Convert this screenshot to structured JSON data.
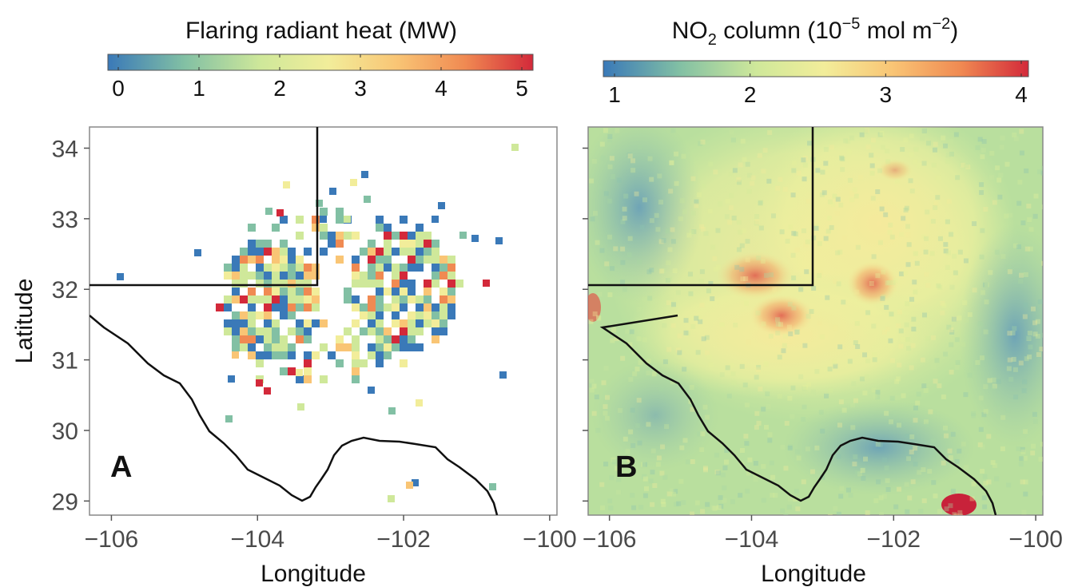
{
  "figure": {
    "panel_a": {
      "label": "A",
      "colorbar_title": "Flaring radiant heat (MW)",
      "colorbar_ticks": [
        "0",
        "1",
        "2",
        "3",
        "4",
        "5"
      ],
      "colorbar_range": [
        0,
        5
      ],
      "x_label": "Longitude",
      "y_label": "Latitude",
      "x_ticks": [
        "−106",
        "−104",
        "−102",
        "−100"
      ],
      "y_ticks": [
        "34",
        "33",
        "32",
        "31",
        "30",
        "29"
      ]
    },
    "panel_b": {
      "label": "B",
      "colorbar_title_prefix": "NO",
      "colorbar_title_sub": "2",
      "colorbar_title_mid": " column (10",
      "colorbar_title_exp1": "−5",
      "colorbar_title_unit": " mol m",
      "colorbar_title_exp2": "−2",
      "colorbar_title_end": ")",
      "colorbar_ticks": [
        "1",
        "2",
        "3",
        "4"
      ],
      "colorbar_range": [
        0.8,
        4.1
      ],
      "x_label": "Longitude",
      "x_ticks": [
        "−106",
        "−104",
        "−102",
        "−100"
      ]
    },
    "colormap": [
      "#3a79b8",
      "#82c0a4",
      "#cfe89a",
      "#f2ed9a",
      "#f9c575",
      "#f08a52",
      "#d3293a"
    ],
    "x_range": [
      -106.3,
      -99.9
    ],
    "y_range": [
      28.8,
      34.3
    ]
  }
}
